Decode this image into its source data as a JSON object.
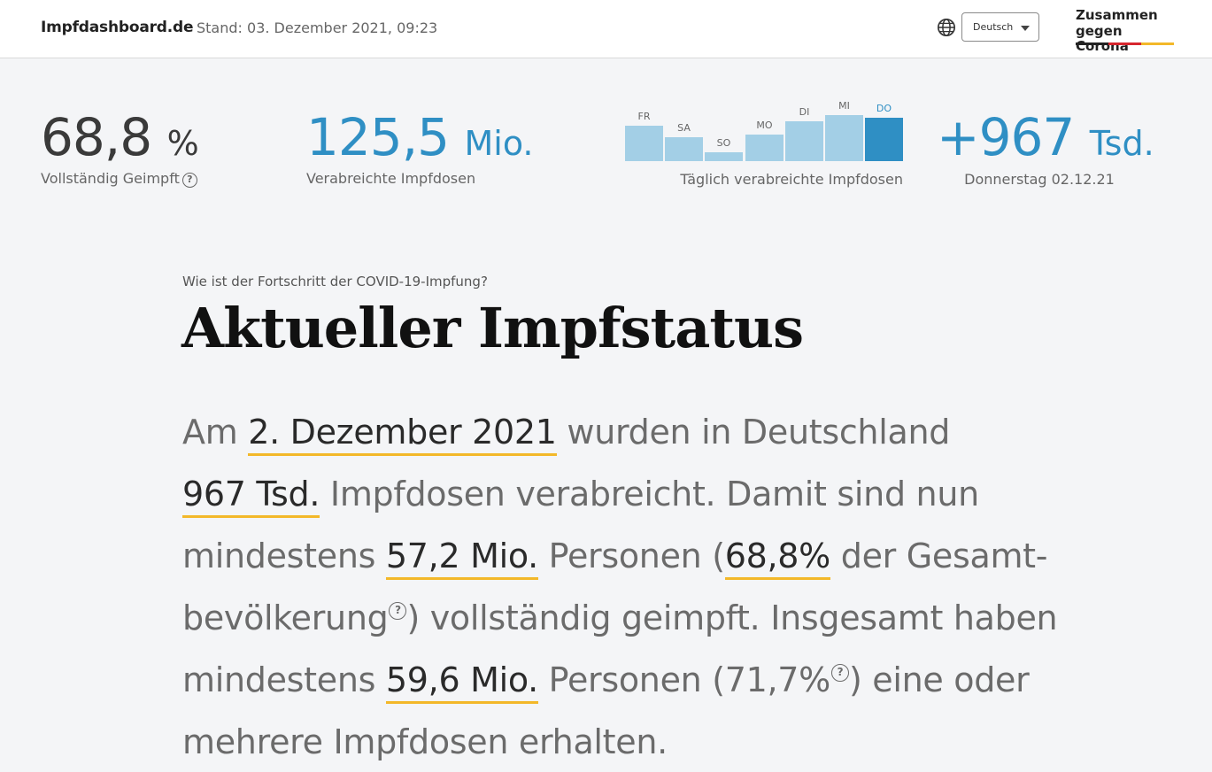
{
  "header": {
    "brand": "Impfdashboard.de",
    "stand": "Stand: 03. Dezember 2021, 09:23",
    "language": "Deutsch",
    "partner_line1": "Zusammen",
    "partner_line2": "gegen Corona",
    "icons": {
      "language": "globe-icon",
      "dropdown": "chevron-down-icon"
    }
  },
  "stats": {
    "fully_vaccinated": {
      "value": "68,8",
      "unit": "%",
      "label": "Vollständig Geimpft"
    },
    "doses_total": {
      "value": "125,5",
      "unit": "Mio.",
      "label": "Verabreichte Impfdosen"
    },
    "daily_label": "Täglich verabreichte Impfdosen",
    "latest": {
      "value": "+967",
      "unit": "Tsd.",
      "label": "Donnerstag 02.12.21"
    }
  },
  "chart_data": {
    "type": "bar",
    "categories": [
      "FR",
      "SA",
      "SO",
      "MO",
      "DI",
      "MI",
      "DO"
    ],
    "values": [
      0.82,
      0.55,
      0.21,
      0.62,
      0.92,
      1.07,
      1.0
    ],
    "highlight_index": 6,
    "xlabel": "Täglich verabreichte Impfdosen",
    "colors": {
      "normal": "#a3cfe6",
      "highlight": "#2f8fc4",
      "label_highlight": "#2f8fc4"
    }
  },
  "article": {
    "kicker": "Wie ist der Fortschritt der COVID-19-Impfung?",
    "headline": "Aktueller Impfstatus",
    "p1": {
      "a": "Am ",
      "date": "2. Dezember 2021",
      "b": " wurden in Deutschland"
    },
    "p2": {
      "doses": "967 Tsd.",
      "b": " Impfdosen verabreicht. Damit sind nun"
    },
    "p3": {
      "a": "mindestens ",
      "full_count": "57,2 Mio.",
      "b": " Personen (",
      "full_pct": "68,8%",
      "c": " der Gesamt-"
    },
    "p4": {
      "a": "bevölkerung",
      "b": ") vollständig geimpft. Insgesamt haben"
    },
    "p5": {
      "a": "mindestens ",
      "any_count": "59,6 Mio.",
      "b": " Personen (",
      "any_pct": "71,7%",
      "c": ") eine oder"
    },
    "p6": {
      "a": "mehrere Impfdosen erhalten."
    }
  },
  "colors": {
    "accent_blue": "#2f8fc4",
    "underline": "#f3b829",
    "stat_dark": "#3a3a3a"
  }
}
